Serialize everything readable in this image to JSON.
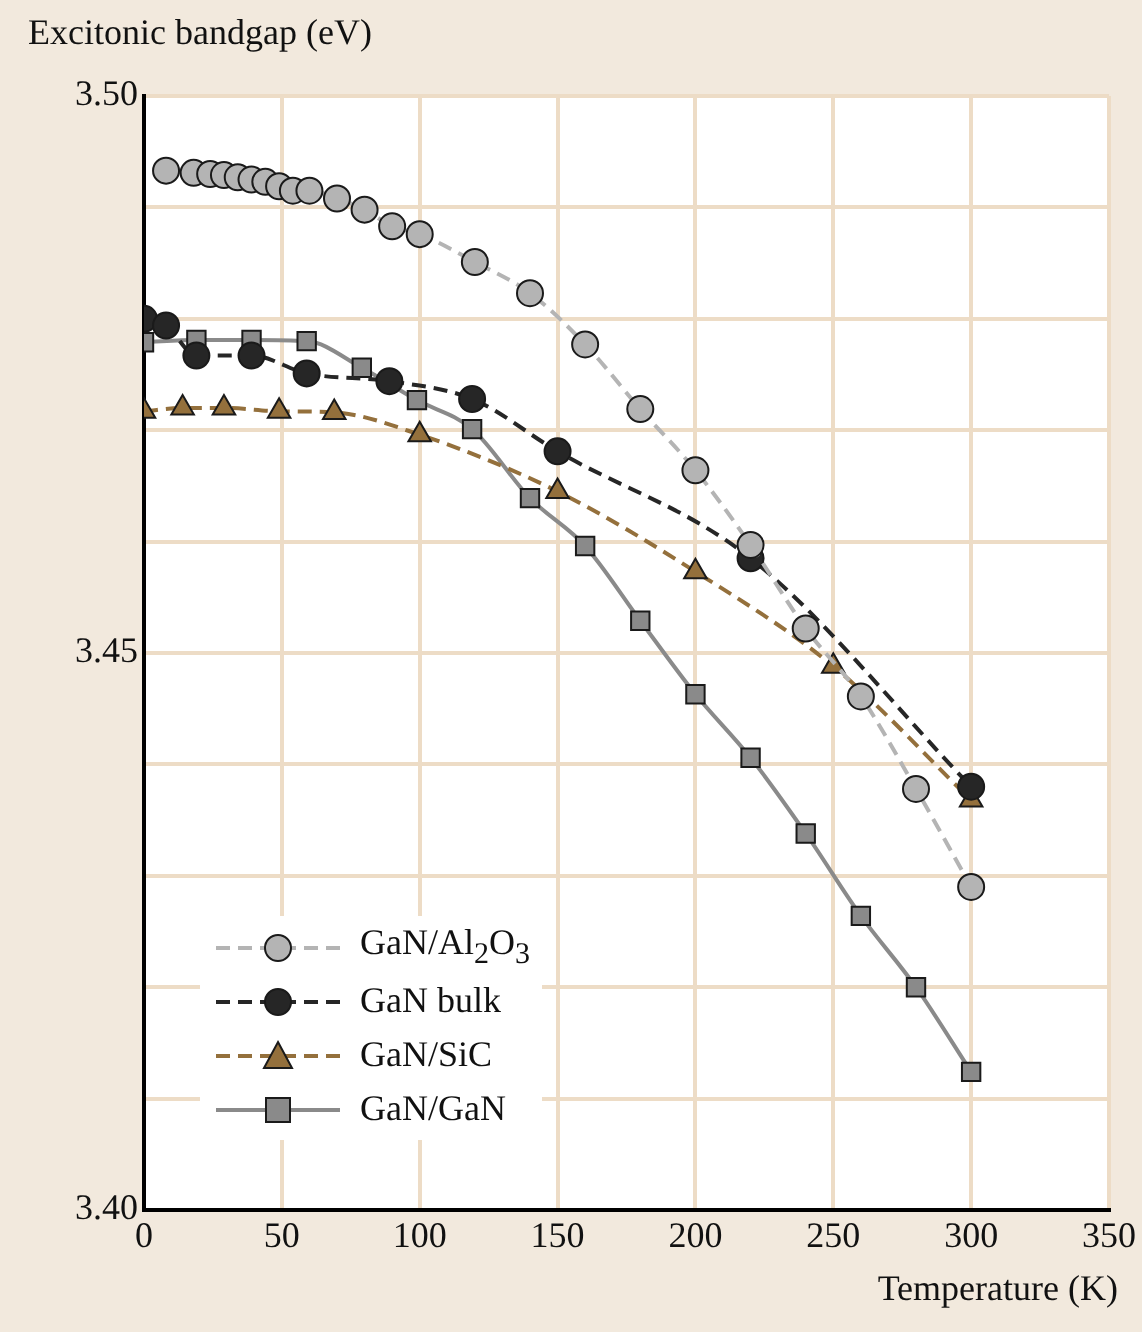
{
  "chart_data": {
    "type": "line",
    "ylabel": "Excitonic bandgap (eV)",
    "xlabel": "Temperature (K)",
    "xlim": [
      0,
      350
    ],
    "xticks": [
      0,
      50,
      100,
      150,
      200,
      250,
      300,
      350
    ],
    "ylim": [
      3.4,
      3.5
    ],
    "yticks": [
      {
        "value": 3.4,
        "label": "3.40"
      },
      {
        "value": 3.41,
        "label": null
      },
      {
        "value": 3.42,
        "label": null
      },
      {
        "value": 3.43,
        "label": null
      },
      {
        "value": 3.44,
        "label": null
      },
      {
        "value": 3.45,
        "label": "3.45"
      },
      {
        "value": 3.46,
        "label": null
      },
      {
        "value": 3.47,
        "label": null
      },
      {
        "value": 3.48,
        "label": null
      },
      {
        "value": 3.49,
        "label": null
      },
      {
        "value": 3.5,
        "label": "3.50"
      }
    ],
    "grid": true,
    "legend": "bottom left",
    "series": [
      {
        "name": "GaN/Al$_{2}$O$_{3}$",
        "color": "#b4b4b4",
        "marker": "circle",
        "line_style": "dashed",
        "x": [
          8,
          18,
          24,
          29,
          34,
          39,
          44,
          49,
          54,
          60,
          70,
          80,
          90,
          100,
          120,
          140,
          160,
          180,
          200,
          220,
          240,
          260,
          280,
          300
        ],
        "values": [
          3.4933,
          3.4931,
          3.493,
          3.4929,
          3.4927,
          3.4925,
          3.4923,
          3.4919,
          3.4915,
          3.4915,
          3.4908,
          3.4898,
          3.4883,
          3.4876,
          3.4851,
          3.4823,
          3.4777,
          3.4719,
          3.4664,
          3.4597,
          3.4522,
          3.4461,
          3.4378,
          3.429
        ]
      },
      {
        "name": "GaN bulk",
        "color": "#262626",
        "marker": "circle",
        "line_style": "dashed",
        "x": [
          0,
          8,
          19,
          39,
          59,
          89,
          119,
          150,
          220,
          300
        ],
        "values": [
          3.48,
          3.4794,
          3.4767,
          3.4767,
          3.4751,
          3.4744,
          3.4728,
          3.4681,
          3.4585,
          3.438
        ]
      },
      {
        "name": "GaN/SiC",
        "color": "#94703c",
        "marker": "triangle",
        "line_style": "dashed",
        "x": [
          0,
          14,
          29,
          49,
          69,
          100,
          150,
          200,
          250,
          300
        ],
        "values": [
          3.4717,
          3.472,
          3.472,
          3.4717,
          3.4716,
          3.4696,
          3.4645,
          3.4573,
          3.4488,
          3.4368
        ]
      },
      {
        "name": "GaN/GaN",
        "color": "#8a8a8a",
        "marker": "square",
        "line_style": "solid",
        "x": [
          0,
          19,
          39,
          59,
          79,
          99,
          119,
          140,
          160,
          180,
          200,
          220,
          240,
          260,
          280,
          300
        ],
        "values": [
          3.4779,
          3.4781,
          3.4781,
          3.478,
          3.4756,
          3.4727,
          3.4701,
          3.4639,
          3.4596,
          3.4529,
          3.4463,
          3.4406,
          3.4338,
          3.4264,
          3.42,
          3.4124
        ]
      }
    ]
  }
}
